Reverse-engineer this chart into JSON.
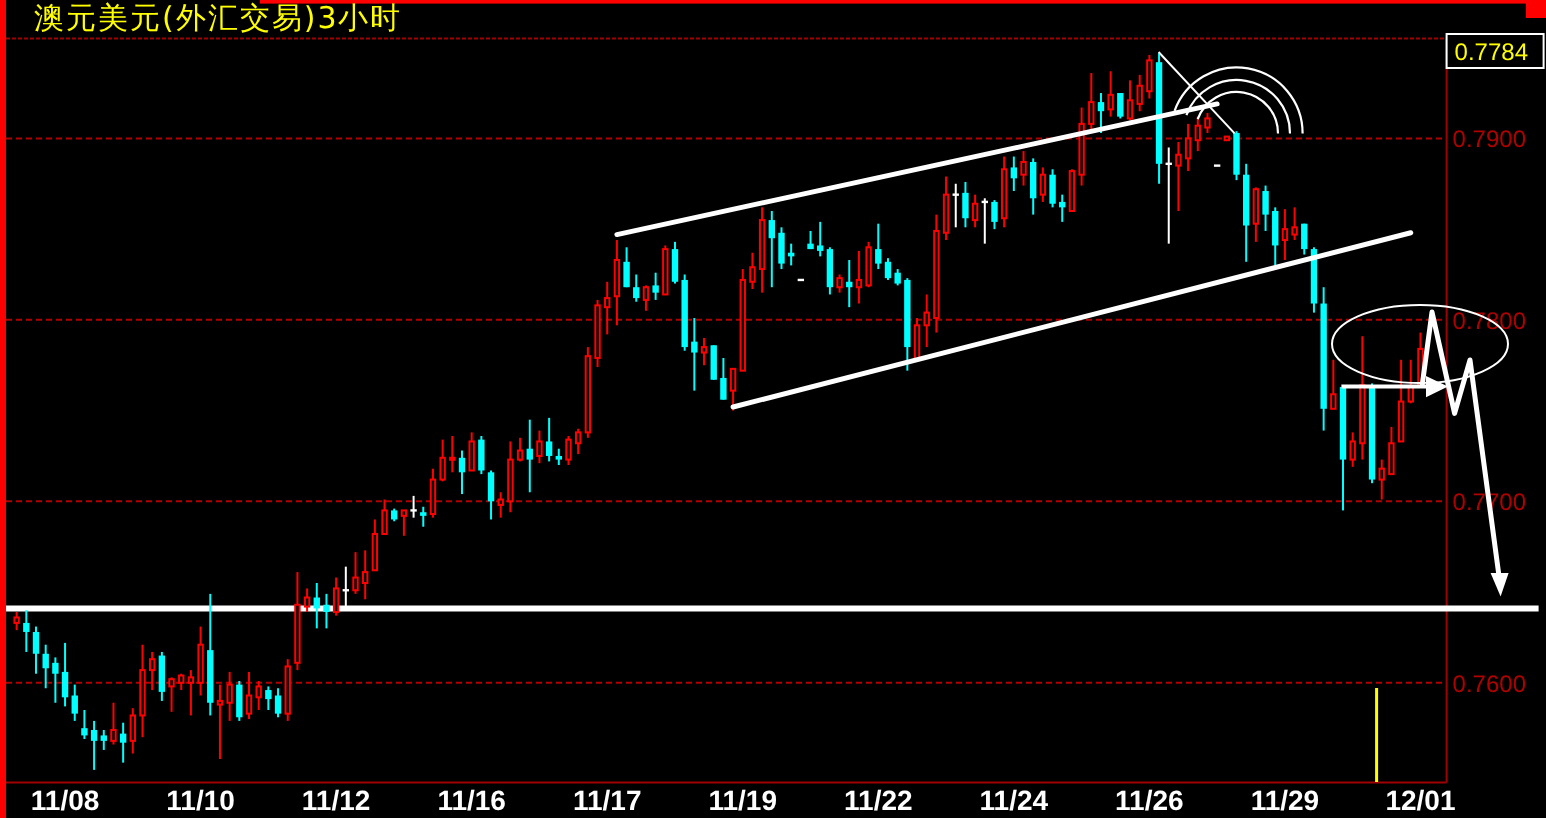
{
  "chart_data": {
    "type": "candlestick",
    "title": "澳元美元(外汇交易)3小时",
    "categories": [
      null,
      null,
      null,
      null,
      null,
      "11/08",
      null,
      null,
      null,
      null,
      null,
      null,
      null,
      null,
      null,
      null,
      null,
      null,
      null,
      "11/10",
      null,
      null,
      null,
      null,
      null,
      null,
      null,
      null,
      null,
      null,
      null,
      null,
      null,
      "11/12",
      null,
      null,
      null,
      null,
      null,
      null,
      null,
      null,
      null,
      null,
      null,
      null,
      null,
      "11/16",
      null,
      null,
      null,
      null,
      null,
      null,
      null,
      null,
      null,
      null,
      null,
      null,
      null,
      "11/17",
      null,
      null,
      null,
      null,
      null,
      null,
      null,
      null,
      null,
      null,
      null,
      null,
      null,
      "11/19",
      null,
      null,
      null,
      null,
      null,
      null,
      null,
      null,
      null,
      null,
      null,
      null,
      null,
      "11/22",
      null,
      null,
      null,
      null,
      null,
      null,
      null,
      null,
      null,
      null,
      null,
      null,
      null,
      "11/24",
      null,
      null,
      null,
      null,
      null,
      null,
      null,
      null,
      null,
      null,
      null,
      null,
      null,
      "11/26",
      null,
      null,
      null,
      null,
      null,
      null,
      null,
      null,
      null,
      null,
      null,
      null,
      null,
      "11/29",
      null,
      null,
      null,
      null,
      null,
      null,
      null,
      null,
      null,
      null,
      null,
      null,
      null,
      "12/01"
    ],
    "ohlc": [
      [
        0.7633,
        0.7639,
        0.7629,
        0.7636
      ],
      [
        0.7633,
        0.764,
        0.7617,
        0.7628
      ],
      [
        0.7628,
        0.7631,
        0.7605,
        0.7616
      ],
      [
        0.7616,
        0.7621,
        0.7597,
        0.7608
      ],
      [
        0.7611,
        0.7614,
        0.7589,
        0.7605
      ],
      [
        0.7606,
        0.7622,
        0.7587,
        0.7592
      ],
      [
        0.7593,
        0.7599,
        0.7579,
        0.7583
      ],
      [
        0.7575,
        0.7585,
        0.7569,
        0.7571
      ],
      [
        0.7574,
        0.7579,
        0.7552,
        0.7568
      ],
      [
        0.7571,
        0.7574,
        0.7563,
        0.7568
      ],
      [
        0.7568,
        0.7589,
        0.7566,
        0.7574
      ],
      [
        0.7572,
        0.7578,
        0.7556,
        0.7567
      ],
      [
        0.7568,
        0.7586,
        0.7561,
        0.7582
      ],
      [
        0.7582,
        0.7621,
        0.757,
        0.7607
      ],
      [
        0.7607,
        0.7617,
        0.7596,
        0.7613
      ],
      [
        0.7615,
        0.7617,
        0.759,
        0.7595
      ],
      [
        0.7598,
        0.7603,
        0.7584,
        0.7602
      ],
      [
        0.76,
        0.7605,
        0.7596,
        0.7604
      ],
      [
        0.76,
        0.7607,
        0.7582,
        0.7603
      ],
      [
        0.76,
        0.7631,
        0.7593,
        0.7621
      ],
      [
        0.7618,
        0.7649,
        0.7582,
        0.7589
      ],
      [
        0.7588,
        0.7599,
        0.7558,
        0.759
      ],
      [
        0.7589,
        0.7606,
        0.7579,
        0.7599
      ],
      [
        0.7599,
        0.7601,
        0.7579,
        0.7581
      ],
      [
        0.7583,
        0.7606,
        0.758,
        0.7593
      ],
      [
        0.7592,
        0.7601,
        0.7585,
        0.7598
      ],
      [
        0.7596,
        0.7598,
        0.7585,
        0.7591
      ],
      [
        0.7593,
        0.7597,
        0.7581,
        0.7583
      ],
      [
        0.7583,
        0.7613,
        0.7579,
        0.7609
      ],
      [
        0.7611,
        0.7661,
        0.7607,
        0.7643
      ],
      [
        0.7642,
        0.7652,
        0.7639,
        0.7647
      ],
      [
        0.7647,
        0.7655,
        0.763,
        0.7641
      ],
      [
        0.7643,
        0.7649,
        0.763,
        0.7639
      ],
      [
        0.7639,
        0.7658,
        0.7637,
        0.7652
      ],
      [
        0.7651,
        0.7664,
        0.7642,
        0.7651
      ],
      [
        0.7651,
        0.7672,
        0.7649,
        0.7658
      ],
      [
        0.7655,
        0.7673,
        0.7646,
        0.7661
      ],
      [
        0.7662,
        0.769,
        0.7662,
        0.7682
      ],
      [
        0.7682,
        0.7701,
        0.7682,
        0.7695
      ],
      [
        0.7695,
        0.7696,
        0.7689,
        0.769
      ],
      [
        0.7692,
        0.7695,
        0.7681,
        0.7695
      ],
      [
        0.7695,
        0.7703,
        0.7691,
        0.7695
      ],
      [
        0.7694,
        0.7697,
        0.7686,
        0.7692
      ],
      [
        0.7693,
        0.7718,
        0.7691,
        0.7712
      ],
      [
        0.7712,
        0.7734,
        0.7711,
        0.7724
      ],
      [
        0.7723,
        0.7736,
        0.7716,
        0.7724
      ],
      [
        0.7724,
        0.7728,
        0.7704,
        0.7716
      ],
      [
        0.7717,
        0.7738,
        0.7717,
        0.7733
      ],
      [
        0.7734,
        0.7736,
        0.7715,
        0.7717
      ],
      [
        0.7716,
        0.7717,
        0.769,
        0.77
      ],
      [
        0.7698,
        0.7705,
        0.7691,
        0.7701
      ],
      [
        0.77,
        0.7733,
        0.7694,
        0.7723
      ],
      [
        0.7723,
        0.7735,
        0.7722,
        0.7728
      ],
      [
        0.7729,
        0.7745,
        0.7705,
        0.7723
      ],
      [
        0.7725,
        0.7739,
        0.7721,
        0.7733
      ],
      [
        0.7733,
        0.7746,
        0.7722,
        0.7725
      ],
      [
        0.7725,
        0.7729,
        0.772,
        0.7723
      ],
      [
        0.7723,
        0.7736,
        0.772,
        0.7734
      ],
      [
        0.7732,
        0.774,
        0.7726,
        0.7738
      ],
      [
        0.7738,
        0.7785,
        0.7735,
        0.778
      ],
      [
        0.7779,
        0.7811,
        0.7774,
        0.7808
      ],
      [
        0.7807,
        0.7821,
        0.7792,
        0.7812
      ],
      [
        0.7813,
        0.7844,
        0.7797,
        0.7833
      ],
      [
        0.7832,
        0.784,
        0.7818,
        0.7818
      ],
      [
        0.7818,
        0.7825,
        0.781,
        0.7812
      ],
      [
        0.7811,
        0.7819,
        0.7805,
        0.7818
      ],
      [
        0.7819,
        0.7826,
        0.7811,
        0.7815
      ],
      [
        0.7814,
        0.7841,
        0.7814,
        0.7839
      ],
      [
        0.7839,
        0.7843,
        0.782,
        0.7821
      ],
      [
        0.7822,
        0.7825,
        0.7783,
        0.7785
      ],
      [
        0.7788,
        0.7801,
        0.7761,
        0.7782
      ],
      [
        0.7782,
        0.779,
        0.7775,
        0.7785
      ],
      [
        0.7786,
        0.7786,
        0.7767,
        0.7767
      ],
      [
        0.7768,
        0.7779,
        0.7756,
        0.7756
      ],
      [
        0.7761,
        0.7773,
        0.775,
        0.7773
      ],
      [
        0.7772,
        0.7828,
        0.7772,
        0.7822
      ],
      [
        0.7821,
        0.7837,
        0.7817,
        0.7829
      ],
      [
        0.7828,
        0.7862,
        0.7815,
        0.7855
      ],
      [
        0.7855,
        0.786,
        0.7818,
        0.7845
      ],
      [
        0.7848,
        0.7851,
        0.7828,
        0.7831
      ],
      [
        0.7837,
        0.7842,
        0.783,
        0.7835
      ],
      [
        0.7822,
        0.7822,
        0.7822,
        0.7822
      ],
      [
        0.7842,
        0.7849,
        0.7839,
        0.7839
      ],
      [
        0.7841,
        0.7854,
        0.7835,
        0.7838
      ],
      [
        0.7839,
        0.784,
        0.7814,
        0.7818
      ],
      [
        0.7818,
        0.7825,
        0.7815,
        0.7823
      ],
      [
        0.7821,
        0.7833,
        0.7807,
        0.7818
      ],
      [
        0.7818,
        0.7838,
        0.7809,
        0.7822
      ],
      [
        0.7819,
        0.7843,
        0.7818,
        0.784
      ],
      [
        0.7839,
        0.7853,
        0.7828,
        0.7831
      ],
      [
        0.7832,
        0.7834,
        0.7822,
        0.7823
      ],
      [
        0.7826,
        0.7828,
        0.7819,
        0.782
      ],
      [
        0.7822,
        0.7823,
        0.7772,
        0.7785
      ],
      [
        0.7778,
        0.7801,
        0.7778,
        0.7797
      ],
      [
        0.7797,
        0.7814,
        0.7785,
        0.7804
      ],
      [
        0.7801,
        0.7858,
        0.7793,
        0.7849
      ],
      [
        0.7848,
        0.7879,
        0.7844,
        0.7869
      ],
      [
        0.7869,
        0.7875,
        0.7851,
        0.7869
      ],
      [
        0.787,
        0.7876,
        0.7851,
        0.7856
      ],
      [
        0.7855,
        0.7869,
        0.7851,
        0.7864
      ],
      [
        0.7865,
        0.7867,
        0.7842,
        0.7865
      ],
      [
        0.7865,
        0.7866,
        0.785,
        0.7854
      ],
      [
        0.7856,
        0.789,
        0.7851,
        0.7883
      ],
      [
        0.7884,
        0.789,
        0.7871,
        0.7878
      ],
      [
        0.788,
        0.7893,
        0.7874,
        0.7887
      ],
      [
        0.7887,
        0.7889,
        0.7858,
        0.7867
      ],
      [
        0.7869,
        0.7884,
        0.7865,
        0.788
      ],
      [
        0.788,
        0.7883,
        0.7862,
        0.7864
      ],
      [
        0.7865,
        0.7869,
        0.7854,
        0.7862
      ],
      [
        0.786,
        0.7883,
        0.786,
        0.7882
      ],
      [
        0.788,
        0.7917,
        0.7874,
        0.7908
      ],
      [
        0.7908,
        0.7936,
        0.7904,
        0.792
      ],
      [
        0.792,
        0.7925,
        0.7903,
        0.7915
      ],
      [
        0.7916,
        0.7937,
        0.7912,
        0.7924
      ],
      [
        0.7925,
        0.7925,
        0.7911,
        0.7912
      ],
      [
        0.7911,
        0.7932,
        0.791,
        0.7921
      ],
      [
        0.7919,
        0.7935,
        0.7915,
        0.7929
      ],
      [
        0.7926,
        0.7946,
        0.7922,
        0.7943
      ],
      [
        0.7942,
        0.7947,
        0.7875,
        0.7886
      ],
      [
        0.7886,
        0.7895,
        0.7842,
        0.7886
      ],
      [
        0.7885,
        0.7898,
        0.786,
        0.7891
      ],
      [
        0.7889,
        0.7908,
        0.7882,
        0.79
      ],
      [
        0.7899,
        0.7912,
        0.7893,
        0.7907
      ],
      [
        0.7906,
        0.7914,
        0.7903,
        0.7911
      ],
      [
        0.7885,
        0.7885,
        0.7885,
        0.7885
      ],
      [
        0.7899,
        0.7901,
        0.7899,
        0.7901
      ],
      [
        0.7903,
        0.7904,
        0.7877,
        0.788
      ],
      [
        0.788,
        0.7886,
        0.7832,
        0.7852
      ],
      [
        0.7853,
        0.7873,
        0.7843,
        0.7872
      ],
      [
        0.7871,
        0.7874,
        0.7849,
        0.7858
      ],
      [
        0.786,
        0.7862,
        0.783,
        0.7841
      ],
      [
        0.7844,
        0.7861,
        0.7833,
        0.785
      ],
      [
        0.7847,
        0.7862,
        0.7844,
        0.7851
      ],
      [
        0.7853,
        0.7853,
        0.7836,
        0.7839
      ],
      [
        0.7839,
        0.784,
        0.7804,
        0.7809
      ],
      [
        0.7809,
        0.7818,
        0.7739,
        0.7751
      ],
      [
        0.7751,
        0.7778,
        0.7751,
        0.7759
      ],
      [
        0.7763,
        0.7763,
        0.7695,
        0.7723
      ],
      [
        0.7723,
        0.7738,
        0.7719,
        0.7733
      ],
      [
        0.7732,
        0.7791,
        0.7723,
        0.7764
      ],
      [
        0.7764,
        0.7765,
        0.771,
        0.7712
      ],
      [
        0.7712,
        0.7723,
        0.7701,
        0.7718
      ],
      [
        0.7715,
        0.7741,
        0.7715,
        0.7732
      ],
      [
        0.7733,
        0.7778,
        0.7733,
        0.7755
      ],
      [
        0.7755,
        0.7778,
        0.7754,
        0.7763
      ],
      [
        0.7763,
        0.7793,
        0.7763,
        0.7784
      ]
    ],
    "colors": [
      "#ff0000",
      "#00ffff",
      "#00ffff",
      "#00ffff",
      "#00ffff",
      "#00ffff",
      "#00ffff",
      "#00ffff",
      "#00ffff",
      "#00ffff",
      "#ff0000",
      "#00ffff",
      "#ff0000",
      "#ff0000",
      "#ff0000",
      "#00ffff",
      "#ff0000",
      "#ff0000",
      "#ff0000",
      "#ff0000",
      "#00ffff",
      "#ff0000",
      "#ff0000",
      "#00ffff",
      "#ff0000",
      "#ff0000",
      "#00ffff",
      "#00ffff",
      "#ff0000",
      "#ff0000",
      "#ff0000",
      "#00ffff",
      "#00ffff",
      "#ff0000",
      "#ffffff",
      "#ff0000",
      "#ff0000",
      "#ff0000",
      "#ff0000",
      "#00ffff",
      "#ff0000",
      "#ffffff",
      "#00ffff",
      "#ff0000",
      "#ff0000",
      "#ff0000",
      "#00ffff",
      "#ff0000",
      "#00ffff",
      "#00ffff",
      "#ff0000",
      "#ff0000",
      "#ff0000",
      "#00ffff",
      "#ff0000",
      "#00ffff",
      "#00ffff",
      "#ff0000",
      "#ff0000",
      "#ff0000",
      "#ff0000",
      "#ff0000",
      "#ff0000",
      "#00ffff",
      "#00ffff",
      "#ff0000",
      "#00ffff",
      "#ff0000",
      "#00ffff",
      "#00ffff",
      "#00ffff",
      "#ff0000",
      "#00ffff",
      "#00ffff",
      "#ff0000",
      "#ff0000",
      "#ff0000",
      "#ff0000",
      "#00ffff",
      "#00ffff",
      "#00ffff",
      "#ffffff",
      "#00ffff",
      "#00ffff",
      "#00ffff",
      "#ff0000",
      "#00ffff",
      "#ff0000",
      "#ff0000",
      "#00ffff",
      "#00ffff",
      "#00ffff",
      "#00ffff",
      "#ff0000",
      "#ff0000",
      "#ff0000",
      "#ff0000",
      "#ffffff",
      "#00ffff",
      "#ff0000",
      "#ffffff",
      "#00ffff",
      "#ff0000",
      "#00ffff",
      "#ff0000",
      "#00ffff",
      "#ff0000",
      "#00ffff",
      "#00ffff",
      "#ff0000",
      "#ff0000",
      "#ff0000",
      "#00ffff",
      "#ff0000",
      "#00ffff",
      "#ff0000",
      "#ff0000",
      "#ff0000",
      "#00ffff",
      "#ffffff",
      "#ff0000",
      "#ff0000",
      "#ff0000",
      "#ff0000",
      "#ffffff",
      "#ff0000",
      "#00ffff",
      "#00ffff",
      "#ff0000",
      "#00ffff",
      "#00ffff",
      "#ff0000",
      "#ff0000",
      "#00ffff",
      "#00ffff",
      "#00ffff",
      "#ff0000",
      "#00ffff",
      "#ff0000",
      "#ff0000",
      "#00ffff",
      "#ff0000",
      "#ff0000",
      "#ff0000",
      "#ff0000",
      "#ff0000"
    ],
    "series": [
      {
        "type": "line",
        "color": "#ffffff",
        "values": [
          null,
          null,
          null,
          null,
          null,
          null,
          null,
          null,
          null,
          null,
          null,
          null,
          null,
          null,
          null,
          null,
          null,
          null,
          null,
          null,
          null,
          null,
          null,
          null,
          null,
          null,
          null,
          null,
          null,
          null,
          null,
          null,
          null,
          null,
          null,
          null,
          null,
          null,
          null,
          null,
          null,
          null,
          null,
          null,
          null,
          null,
          null,
          null,
          null,
          null,
          null,
          null,
          null,
          null,
          null,
          null,
          null,
          null,
          null,
          null,
          null,
          null,
          0.7847,
          null,
          null,
          null,
          null,
          null,
          null,
          null,
          null,
          null,
          null,
          null,
          null,
          null,
          null,
          null,
          null,
          null,
          null,
          null,
          null,
          null,
          null,
          null,
          null,
          null,
          null,
          null,
          null,
          null,
          null,
          null,
          null,
          null,
          null,
          null,
          null,
          null,
          null,
          null,
          null,
          null,
          null,
          null,
          null,
          null,
          null,
          null,
          null,
          null,
          null,
          null,
          null,
          null,
          null,
          null,
          null,
          null,
          null,
          null,
          null,
          null,
          0.7919,
          null,
          null,
          null,
          null,
          null,
          null,
          null,
          null,
          null,
          null,
          null,
          null,
          null,
          null,
          null,
          null,
          null,
          null,
          null,
          null,
          null
        ]
      },
      {
        "type": "line",
        "color": "#ffffff",
        "values": [
          null,
          null,
          null,
          null,
          null,
          null,
          null,
          null,
          null,
          null,
          null,
          null,
          null,
          null,
          null,
          null,
          null,
          null,
          null,
          null,
          null,
          null,
          null,
          null,
          null,
          null,
          null,
          null,
          null,
          null,
          null,
          null,
          null,
          null,
          null,
          null,
          null,
          null,
          null,
          null,
          null,
          null,
          null,
          null,
          null,
          null,
          null,
          null,
          null,
          null,
          null,
          null,
          null,
          null,
          null,
          null,
          null,
          null,
          null,
          null,
          null,
          null,
          null,
          null,
          null,
          null,
          null,
          null,
          null,
          null,
          null,
          null,
          null,
          null,
          0.7752,
          null,
          null,
          null,
          null,
          null,
          null,
          null,
          null,
          null,
          null,
          null,
          null,
          null,
          null,
          null,
          null,
          null,
          null,
          null,
          null,
          null,
          null,
          null,
          null,
          null,
          null,
          null,
          null,
          null,
          null,
          null,
          null,
          null,
          null,
          null,
          null,
          null,
          null,
          null,
          null,
          null,
          null,
          null,
          null,
          null,
          null,
          null,
          null,
          null,
          null,
          null,
          null,
          null,
          null,
          null,
          null,
          null,
          null,
          null,
          null,
          null,
          null,
          null,
          null,
          null,
          null,
          null,
          null,
          null,
          0.7848,
          null
        ]
      }
    ],
    "ylim": [
      0.7545,
      0.7955
    ],
    "yticks": [
      {
        "value": 0.76,
        "label": "0.7600"
      },
      {
        "value": 0.77,
        "label": "0.7700"
      },
      {
        "value": 0.78,
        "label": "0.7800"
      },
      {
        "value": 0.79,
        "label": "0.7900"
      }
    ],
    "grid": "y",
    "ref_lines": [
      {
        "axis": "y",
        "value": 0.7641,
        "color": "#ffffff"
      }
    ],
    "annotations": [
      "0.7784"
    ]
  }
}
